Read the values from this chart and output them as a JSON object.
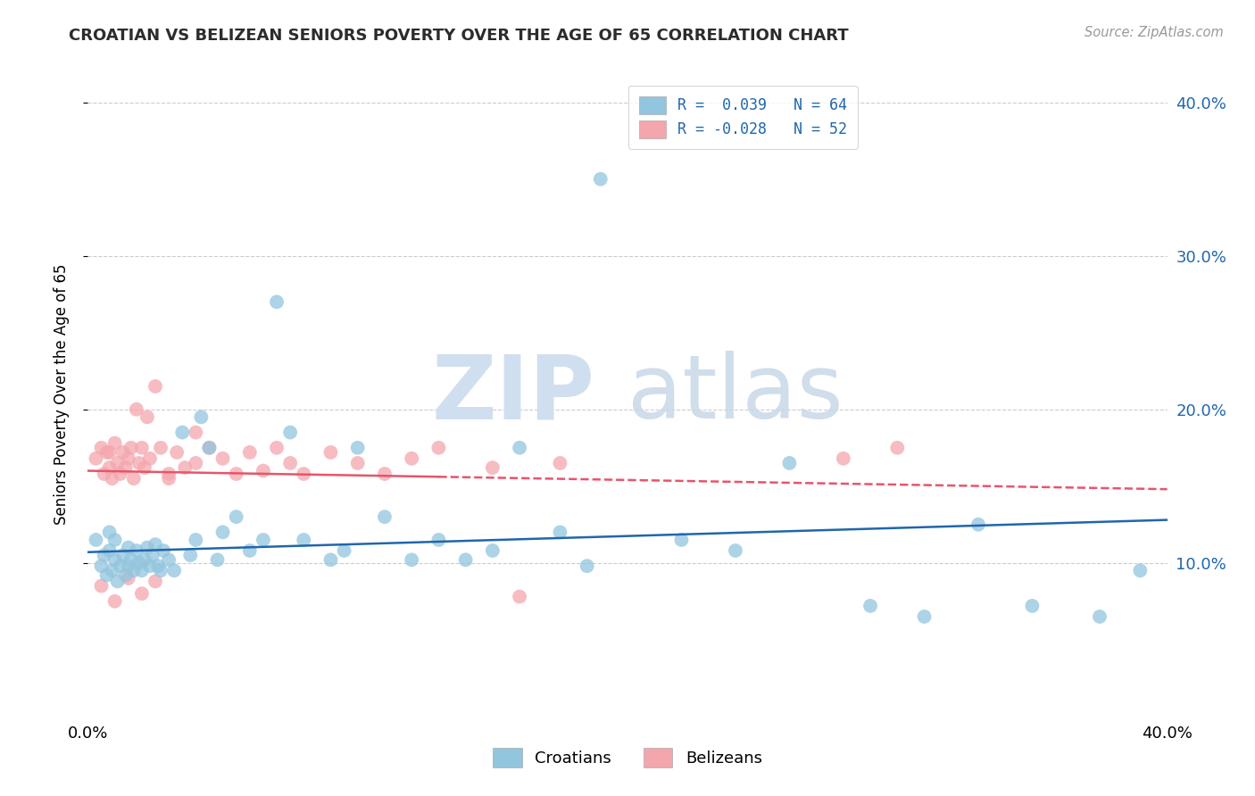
{
  "title": "CROATIAN VS BELIZEAN SENIORS POVERTY OVER THE AGE OF 65 CORRELATION CHART",
  "source": "Source: ZipAtlas.com",
  "ylabel": "Seniors Poverty Over the Age of 65",
  "xlim": [
    0.0,
    0.4
  ],
  "ylim": [
    0.0,
    0.42
  ],
  "yticks": [
    0.1,
    0.2,
    0.3,
    0.4
  ],
  "ytick_labels": [
    "10.0%",
    "20.0%",
    "30.0%",
    "40.0%"
  ],
  "grid_color": "#cccccc",
  "background_color": "#ffffff",
  "legend_blue_label": "R =  0.039   N = 64",
  "legend_pink_label": "R = -0.028   N = 52",
  "legend_label_croatians": "Croatians",
  "legend_label_belizeans": "Belizeans",
  "blue_color": "#92c5de",
  "pink_color": "#f4a6ad",
  "blue_line_color": "#2166ac",
  "pink_line_color": "#e8546a",
  "watermark_zip": "ZIP",
  "watermark_atlas": "atlas",
  "blue_line_start": 0.107,
  "blue_line_end": 0.128,
  "pink_line_start": 0.16,
  "pink_line_end": 0.148,
  "croatian_x": [
    0.003,
    0.005,
    0.006,
    0.007,
    0.008,
    0.008,
    0.009,
    0.01,
    0.01,
    0.011,
    0.012,
    0.013,
    0.014,
    0.015,
    0.015,
    0.016,
    0.017,
    0.018,
    0.019,
    0.02,
    0.021,
    0.022,
    0.023,
    0.024,
    0.025,
    0.026,
    0.027,
    0.028,
    0.03,
    0.032,
    0.035,
    0.038,
    0.04,
    0.042,
    0.045,
    0.048,
    0.05,
    0.055,
    0.06,
    0.065,
    0.07,
    0.075,
    0.08,
    0.09,
    0.095,
    0.1,
    0.11,
    0.12,
    0.13,
    0.14,
    0.15,
    0.16,
    0.175,
    0.185,
    0.19,
    0.22,
    0.24,
    0.26,
    0.29,
    0.31,
    0.33,
    0.35,
    0.375,
    0.39
  ],
  "croatian_y": [
    0.115,
    0.098,
    0.105,
    0.092,
    0.108,
    0.12,
    0.095,
    0.102,
    0.115,
    0.088,
    0.098,
    0.105,
    0.092,
    0.11,
    0.098,
    0.102,
    0.095,
    0.108,
    0.1,
    0.095,
    0.102,
    0.11,
    0.098,
    0.105,
    0.112,
    0.098,
    0.095,
    0.108,
    0.102,
    0.095,
    0.185,
    0.105,
    0.115,
    0.195,
    0.175,
    0.102,
    0.12,
    0.13,
    0.108,
    0.115,
    0.27,
    0.185,
    0.115,
    0.102,
    0.108,
    0.175,
    0.13,
    0.102,
    0.115,
    0.102,
    0.108,
    0.175,
    0.12,
    0.098,
    0.35,
    0.115,
    0.108,
    0.165,
    0.072,
    0.065,
    0.125,
    0.072,
    0.065,
    0.095
  ],
  "belizean_x": [
    0.003,
    0.005,
    0.006,
    0.007,
    0.008,
    0.009,
    0.01,
    0.011,
    0.012,
    0.013,
    0.014,
    0.015,
    0.016,
    0.017,
    0.018,
    0.019,
    0.02,
    0.021,
    0.022,
    0.023,
    0.025,
    0.027,
    0.03,
    0.033,
    0.036,
    0.04,
    0.045,
    0.05,
    0.055,
    0.06,
    0.065,
    0.07,
    0.075,
    0.08,
    0.09,
    0.1,
    0.11,
    0.12,
    0.13,
    0.15,
    0.16,
    0.175,
    0.28,
    0.3,
    0.005,
    0.01,
    0.015,
    0.02,
    0.025,
    0.03,
    0.008,
    0.04
  ],
  "belizean_y": [
    0.168,
    0.175,
    0.158,
    0.172,
    0.162,
    0.155,
    0.178,
    0.165,
    0.158,
    0.172,
    0.162,
    0.168,
    0.175,
    0.155,
    0.2,
    0.165,
    0.175,
    0.162,
    0.195,
    0.168,
    0.215,
    0.175,
    0.158,
    0.172,
    0.162,
    0.185,
    0.175,
    0.168,
    0.158,
    0.172,
    0.16,
    0.175,
    0.165,
    0.158,
    0.172,
    0.165,
    0.158,
    0.168,
    0.175,
    0.162,
    0.078,
    0.165,
    0.168,
    0.175,
    0.085,
    0.075,
    0.09,
    0.08,
    0.088,
    0.155,
    0.172,
    0.165
  ]
}
